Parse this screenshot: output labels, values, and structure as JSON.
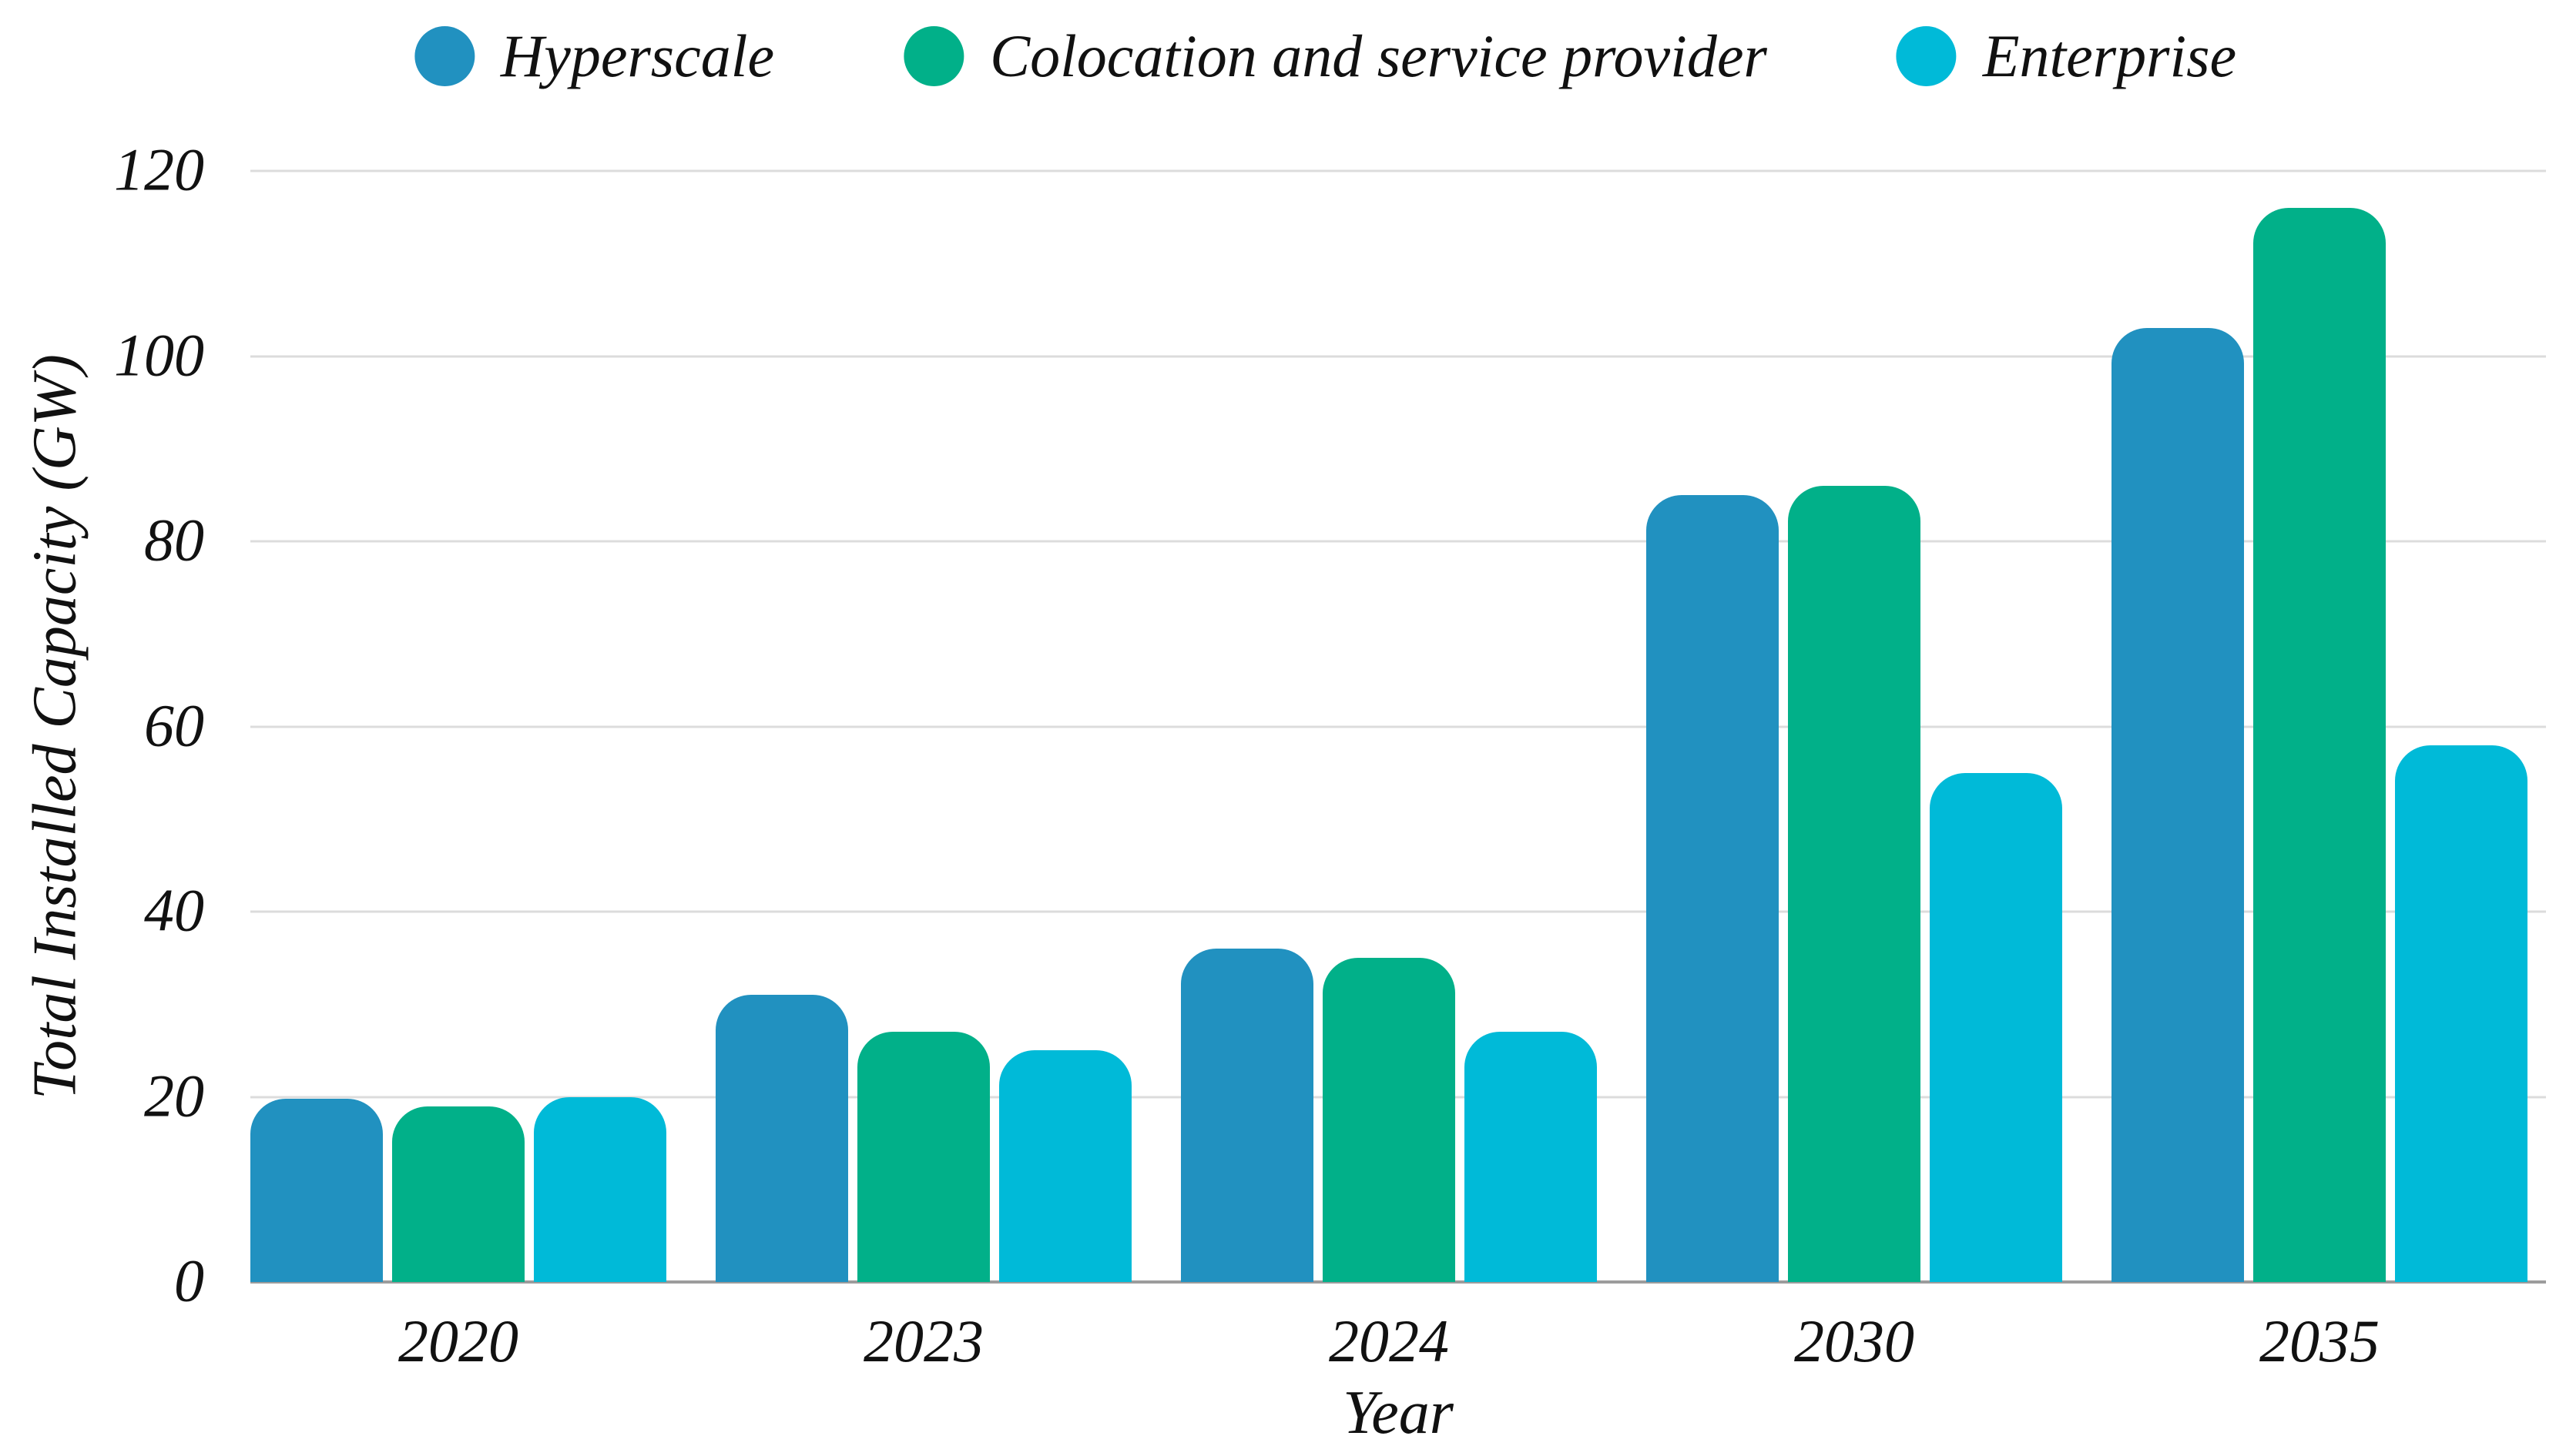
{
  "figure": {
    "background": "#ffffff"
  },
  "chart_data": {
    "type": "bar",
    "title": "",
    "categories": [
      "2020",
      "2023",
      "2024",
      "2030",
      "2035"
    ],
    "series": [
      {
        "name": "Hyperscale",
        "color": "#2191C0",
        "values": [
          19.8,
          31,
          36,
          85,
          103
        ]
      },
      {
        "name": "Colocation and service provider",
        "color": "#01B089",
        "values": [
          19,
          27,
          35,
          86,
          116
        ]
      },
      {
        "name": "Enterprise",
        "color": "#00BAD8",
        "values": [
          20,
          25,
          27,
          55,
          58
        ]
      }
    ],
    "xlabel": "Year",
    "ylabel": "Total Installed Capacity (GW)",
    "ylim": [
      0,
      120
    ],
    "yticks": [
      0,
      20,
      40,
      60,
      80,
      100,
      120
    ],
    "grid": "horizontal gridlines at every y tick, no vertical gridlines",
    "legend_position": "top-center",
    "styles": {
      "gridline_color": "#DCDCDC",
      "baseline_color": "#9C9C9C",
      "text_color": "#111111",
      "bar_corner_radius_px": 46
    }
  }
}
